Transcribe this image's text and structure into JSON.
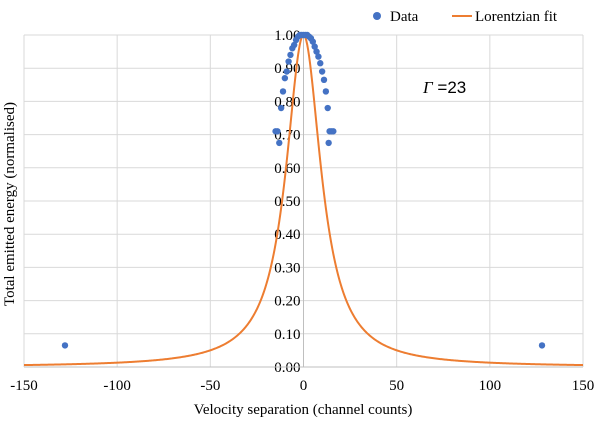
{
  "chart_data": {
    "type": "scatter",
    "title": "",
    "xlabel": "Velocity separation (channel counts)",
    "ylabel": "Total emitted energy (normalised)",
    "xlim": [
      -150,
      150
    ],
    "ylim": [
      0,
      1
    ],
    "x_ticks": [
      -150,
      -100,
      -50,
      0,
      50,
      100,
      150
    ],
    "x_tick_labels": [
      "-150",
      "-100",
      "-50",
      "0",
      "50",
      "100",
      "150"
    ],
    "y_ticks": [
      0,
      0.1,
      0.2,
      0.3,
      0.4,
      0.5,
      0.6,
      0.7,
      0.8,
      0.9,
      1.0
    ],
    "y_tick_labels": [
      "0.00",
      "0.10",
      "0.20",
      "0.30",
      "0.40",
      "0.50",
      "0.60",
      "0.70",
      "0.80",
      "0.90",
      "1.00"
    ],
    "grid": true,
    "legend_position": "top-right",
    "series": [
      {
        "name": "Data",
        "kind": "scatter",
        "color": "#4472C4",
        "points": [
          [
            -128,
            0.065
          ],
          [
            -15,
            0.71
          ],
          [
            -14,
            0.71
          ],
          [
            -13,
            0.675
          ],
          [
            -12,
            0.78
          ],
          [
            -11,
            0.83
          ],
          [
            -10,
            0.87
          ],
          [
            -9,
            0.89
          ],
          [
            -8,
            0.92
          ],
          [
            -7,
            0.94
          ],
          [
            -6,
            0.96
          ],
          [
            -5,
            0.97
          ],
          [
            -4,
            0.985
          ],
          [
            -3,
            0.995
          ],
          [
            -2,
            1.0
          ],
          [
            -1,
            1.0
          ],
          [
            0,
            1.0
          ],
          [
            1,
            1.0
          ],
          [
            2,
            1.0
          ],
          [
            3,
            0.995
          ],
          [
            4,
            0.99
          ],
          [
            5,
            0.98
          ],
          [
            6,
            0.965
          ],
          [
            7,
            0.95
          ],
          [
            8,
            0.935
          ],
          [
            9,
            0.915
          ],
          [
            10,
            0.89
          ],
          [
            11,
            0.865
          ],
          [
            12,
            0.83
          ],
          [
            13,
            0.78
          ],
          [
            14,
            0.71
          ],
          [
            15,
            0.71
          ],
          [
            16,
            0.71
          ],
          [
            13.5,
            0.675
          ],
          [
            128,
            0.065
          ]
        ]
      },
      {
        "name": "Lorentzian fit",
        "kind": "line",
        "color": "#ED7D31",
        "gamma": 23,
        "x0": 0,
        "x_range": [
          -150,
          150
        ]
      }
    ],
    "annotations": [
      {
        "symbol": "Γ",
        "text": " =23"
      }
    ]
  }
}
